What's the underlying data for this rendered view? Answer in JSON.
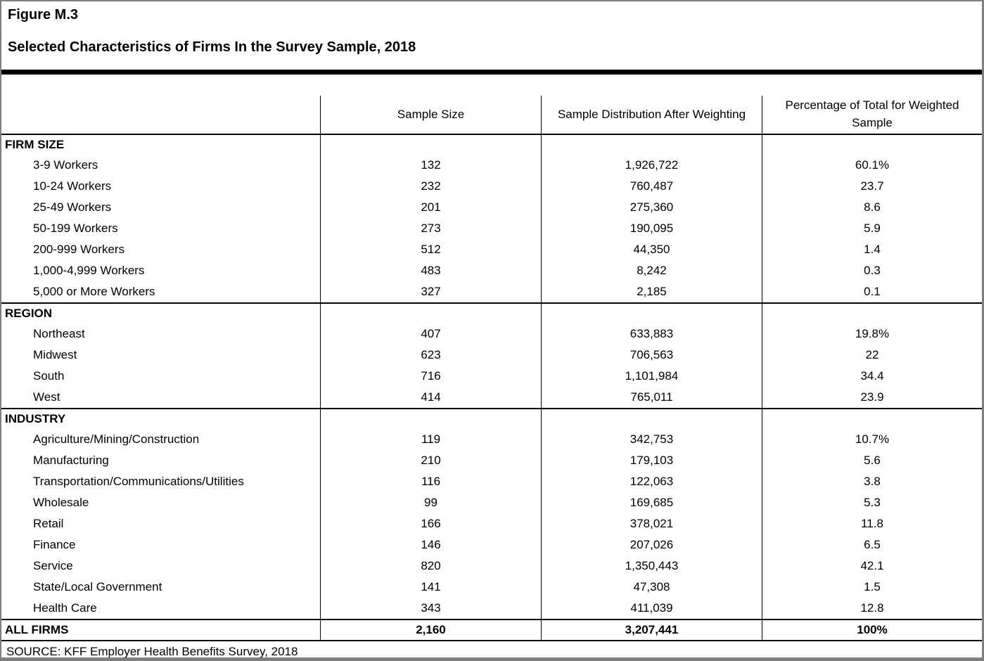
{
  "header": {
    "figure_label": "Figure M.3",
    "title": "Selected Characteristics of Firms In the Survey Sample, 2018"
  },
  "columns": [
    "Sample Size",
    "Sample Distribution After Weighting",
    "Percentage of Total for Weighted Sample"
  ],
  "table": {
    "sections": [
      {
        "header": "FIRM SIZE",
        "rows": [
          {
            "label": "3-9 Workers",
            "sample_size": "132",
            "distribution": "1,926,722",
            "percentage": "60.1%"
          },
          {
            "label": "10-24 Workers",
            "sample_size": "232",
            "distribution": "760,487",
            "percentage": "23.7"
          },
          {
            "label": "25-49 Workers",
            "sample_size": "201",
            "distribution": "275,360",
            "percentage": "8.6"
          },
          {
            "label": "50-199 Workers",
            "sample_size": "273",
            "distribution": "190,095",
            "percentage": "5.9"
          },
          {
            "label": "200-999 Workers",
            "sample_size": "512",
            "distribution": "44,350",
            "percentage": "1.4"
          },
          {
            "label": "1,000-4,999 Workers",
            "sample_size": "483",
            "distribution": "8,242",
            "percentage": "0.3"
          },
          {
            "label": "5,000 or More Workers",
            "sample_size": "327",
            "distribution": "2,185",
            "percentage": "0.1"
          }
        ]
      },
      {
        "header": "REGION",
        "rows": [
          {
            "label": "Northeast",
            "sample_size": "407",
            "distribution": "633,883",
            "percentage": "19.8%"
          },
          {
            "label": "Midwest",
            "sample_size": "623",
            "distribution": "706,563",
            "percentage": "22"
          },
          {
            "label": "South",
            "sample_size": "716",
            "distribution": "1,101,984",
            "percentage": "34.4"
          },
          {
            "label": "West",
            "sample_size": "414",
            "distribution": "765,011",
            "percentage": "23.9"
          }
        ]
      },
      {
        "header": "INDUSTRY",
        "rows": [
          {
            "label": "Agriculture/Mining/Construction",
            "sample_size": "119",
            "distribution": "342,753",
            "percentage": "10.7%"
          },
          {
            "label": "Manufacturing",
            "sample_size": "210",
            "distribution": "179,103",
            "percentage": "5.6"
          },
          {
            "label": "Transportation/Communications/Utilities",
            "sample_size": "116",
            "distribution": "122,063",
            "percentage": "3.8"
          },
          {
            "label": "Wholesale",
            "sample_size": "99",
            "distribution": "169,685",
            "percentage": "5.3"
          },
          {
            "label": "Retail",
            "sample_size": "166",
            "distribution": "378,021",
            "percentage": "11.8"
          },
          {
            "label": "Finance",
            "sample_size": "146",
            "distribution": "207,026",
            "percentage": "6.5"
          },
          {
            "label": "Service",
            "sample_size": "820",
            "distribution": "1,350,443",
            "percentage": "42.1"
          },
          {
            "label": "State/Local Government",
            "sample_size": "141",
            "distribution": "47,308",
            "percentage": "1.5"
          },
          {
            "label": "Health Care",
            "sample_size": "343",
            "distribution": "411,039",
            "percentage": "12.8"
          }
        ]
      }
    ],
    "total_row": {
      "label": "ALL FIRMS",
      "sample_size": "2,160",
      "distribution": "3,207,441",
      "percentage": "100%"
    }
  },
  "footer": {
    "source": "SOURCE: KFF Employer Health Benefits Survey, 2018"
  },
  "colors": {
    "text": "#000000",
    "grid_line": "#000000",
    "frame": "#808080",
    "background": "#ffffff"
  }
}
